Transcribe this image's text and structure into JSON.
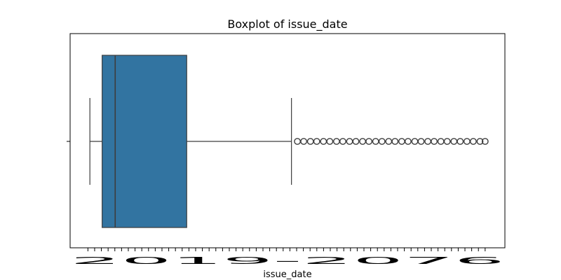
{
  "chart_data": {
    "type": "boxplot",
    "orientation": "horizontal",
    "title": "Boxplot of issue_date",
    "xlabel": "issue_date",
    "ylabel": "",
    "x_tick_labels_overlapping": "2019-2076",
    "box_color": "#3274a1",
    "stats": {
      "whisker_low": 0.5,
      "q1": 3.6,
      "median": 6.9,
      "q3": 25.0,
      "whisker_high": 51.5
    },
    "xlim": [
      -4.5,
      105.5
    ],
    "outliers": [
      53.0,
      54.6,
      56.3,
      57.9,
      59.6,
      61.2,
      62.9,
      64.5,
      66.2,
      67.8,
      69.5,
      71.1,
      72.8,
      74.4,
      76.1,
      77.7,
      79.4,
      81.0,
      82.7,
      84.3,
      86.0,
      87.6,
      89.3,
      90.9,
      92.6,
      94.2,
      95.9,
      97.5,
      99.2,
      100.5
    ],
    "grid": false,
    "legend": "none"
  }
}
